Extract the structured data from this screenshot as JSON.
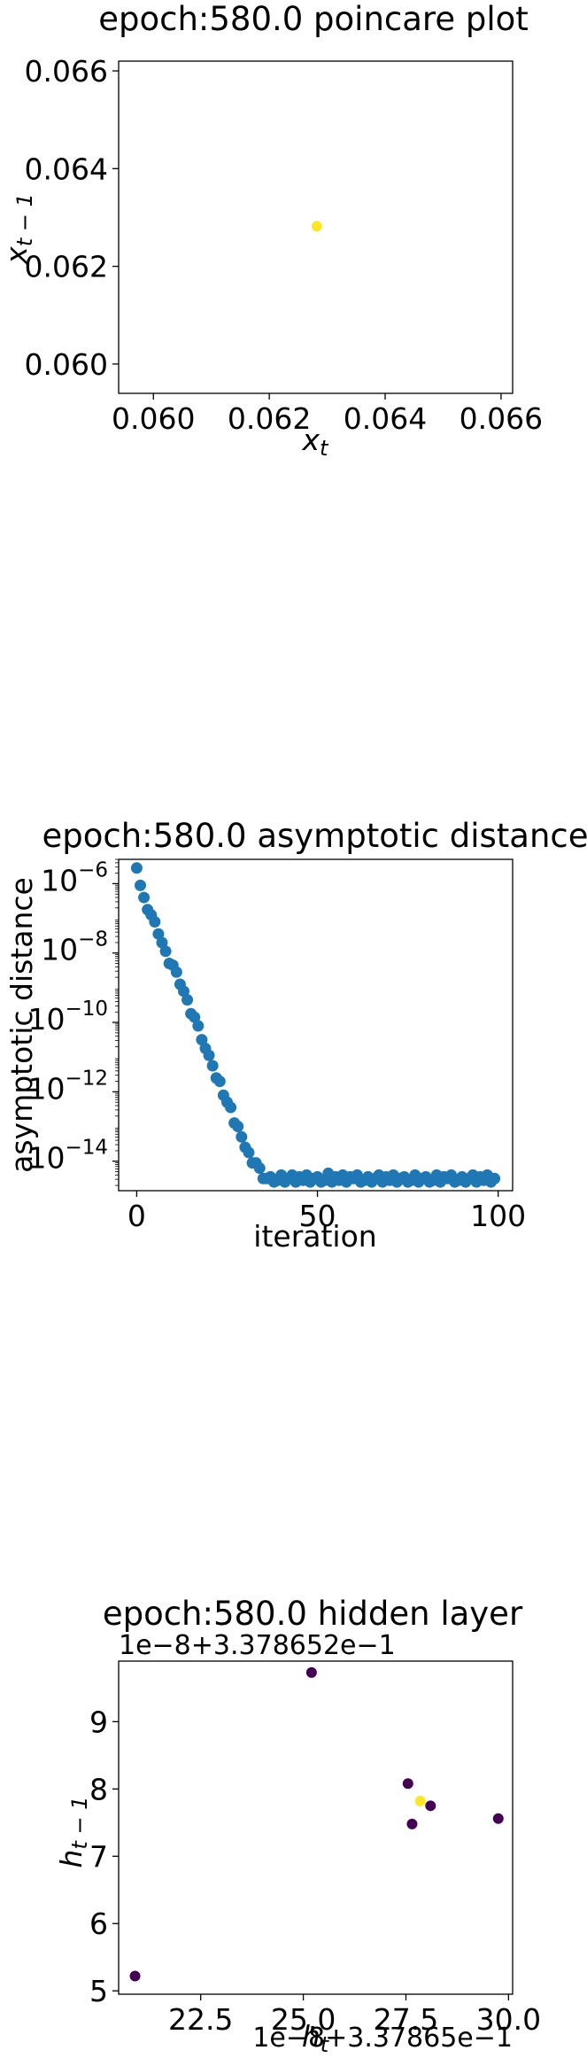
{
  "chart_data": [
    {
      "type": "scatter",
      "title": "epoch:580.0 poincare plot",
      "xlabel": "x_t",
      "ylabel": "x_{t-1}",
      "xlim": [
        0.0594,
        0.0662
      ],
      "ylim": [
        0.0594,
        0.0662
      ],
      "x_ticks": [
        0.06,
        0.062,
        0.064,
        0.066
      ],
      "y_ticks": [
        0.06,
        0.062,
        0.064,
        0.066
      ],
      "x_tick_labels": [
        "0.060",
        "0.062",
        "0.064",
        "0.066"
      ],
      "y_tick_labels": [
        "0.060",
        "0.062",
        "0.064",
        "0.066"
      ],
      "points": [
        {
          "x": 0.06282,
          "y": 0.06282,
          "color": "#fde725"
        }
      ],
      "grid": false
    },
    {
      "type": "scatter",
      "title": "epoch:580.0 asymptotic distance",
      "xlabel": "iteration",
      "ylabel": "asymptotic distance",
      "y_scale": "log",
      "xlim": [
        -5,
        104
      ],
      "ylim_log10": [
        -14.85,
        -5.3
      ],
      "x_ticks": [
        0,
        50,
        100
      ],
      "x_tick_labels": [
        "0",
        "50",
        "100"
      ],
      "y_ticks_log10": [
        -6,
        -8,
        -10,
        -12,
        -14
      ],
      "y_tick_labels": [
        "10^-6",
        "10^-8",
        "10^-10",
        "10^-12",
        "10^-14"
      ],
      "color": "#1f77b4",
      "x": [
        0,
        1,
        2,
        3,
        4,
        5,
        6,
        7,
        8,
        9,
        10,
        11,
        12,
        13,
        14,
        15,
        16,
        17,
        18,
        19,
        20,
        21,
        22,
        23,
        24,
        25,
        26,
        27,
        28,
        29,
        30,
        31,
        32,
        33,
        34,
        35,
        36,
        37,
        38,
        39,
        40,
        41,
        42,
        43,
        44,
        45,
        46,
        47,
        48,
        49,
        50,
        51,
        52,
        53,
        54,
        55,
        56,
        57,
        58,
        59,
        60,
        61,
        62,
        63,
        64,
        65,
        66,
        67,
        68,
        69,
        70,
        71,
        72,
        73,
        74,
        75,
        76,
        77,
        78,
        79,
        80,
        81,
        82,
        83,
        84,
        85,
        86,
        87,
        88,
        89,
        90,
        91,
        92,
        93,
        94,
        95,
        96,
        97,
        98,
        99
      ],
      "log10_y": [
        -5.55,
        -6.05,
        -6.4,
        -6.75,
        -6.9,
        -7.1,
        -7.45,
        -7.7,
        -7.95,
        -8.3,
        -8.35,
        -8.55,
        -8.9,
        -9.1,
        -9.35,
        -9.75,
        -9.85,
        -10.1,
        -10.5,
        -10.75,
        -10.95,
        -11.25,
        -11.6,
        -11.7,
        -12.1,
        -12.3,
        -12.45,
        -12.9,
        -13.0,
        -13.3,
        -13.6,
        -13.75,
        -14.05,
        -14.05,
        -14.2,
        -14.5,
        -14.5,
        -14.45,
        -14.6,
        -14.55,
        -14.4,
        -14.6,
        -14.5,
        -14.4,
        -14.6,
        -14.45,
        -14.55,
        -14.4,
        -14.6,
        -14.5,
        -14.45,
        -14.6,
        -14.55,
        -14.35,
        -14.6,
        -14.45,
        -14.55,
        -14.4,
        -14.6,
        -14.45,
        -14.5,
        -14.4,
        -14.6,
        -14.55,
        -14.45,
        -14.6,
        -14.5,
        -14.4,
        -14.6,
        -14.45,
        -14.55,
        -14.4,
        -14.6,
        -14.5,
        -14.45,
        -14.6,
        -14.55,
        -14.4,
        -14.6,
        -14.5,
        -14.45,
        -14.6,
        -14.55,
        -14.4,
        -14.6,
        -14.45,
        -14.5,
        -14.4,
        -14.6,
        -14.55,
        -14.45,
        -14.6,
        -14.5,
        -14.4,
        -14.6,
        -14.45,
        -14.55,
        -14.4,
        -14.6,
        -14.5
      ],
      "grid": false
    },
    {
      "type": "scatter",
      "title": "epoch:580.0 hidden layer",
      "xlabel": "h_t",
      "ylabel": "h_{t-1}",
      "x_offset_label": "1e−8+3.37865e−1",
      "y_offset_label": "1e−8+3.378652e−1",
      "xlim": [
        20.5,
        30.1
      ],
      "ylim": [
        4.95,
        9.9
      ],
      "x_ticks": [
        22.5,
        25.0,
        27.5,
        30.0
      ],
      "y_ticks": [
        5,
        6,
        7,
        8,
        9
      ],
      "x_tick_labels": [
        "22.5",
        "25.0",
        "27.5",
        "30.0"
      ],
      "y_tick_labels": [
        "5",
        "6",
        "7",
        "8",
        "9"
      ],
      "points": [
        {
          "x": 20.9,
          "y": 5.22,
          "color": "#440154"
        },
        {
          "x": 25.2,
          "y": 9.73,
          "color": "#440154"
        },
        {
          "x": 27.55,
          "y": 8.08,
          "color": "#440154"
        },
        {
          "x": 27.65,
          "y": 7.48,
          "color": "#440154"
        },
        {
          "x": 28.1,
          "y": 7.75,
          "color": "#440154"
        },
        {
          "x": 29.75,
          "y": 7.56,
          "color": "#440154"
        },
        {
          "x": 27.85,
          "y": 7.82,
          "color": "#fde725"
        }
      ],
      "grid": false
    }
  ]
}
